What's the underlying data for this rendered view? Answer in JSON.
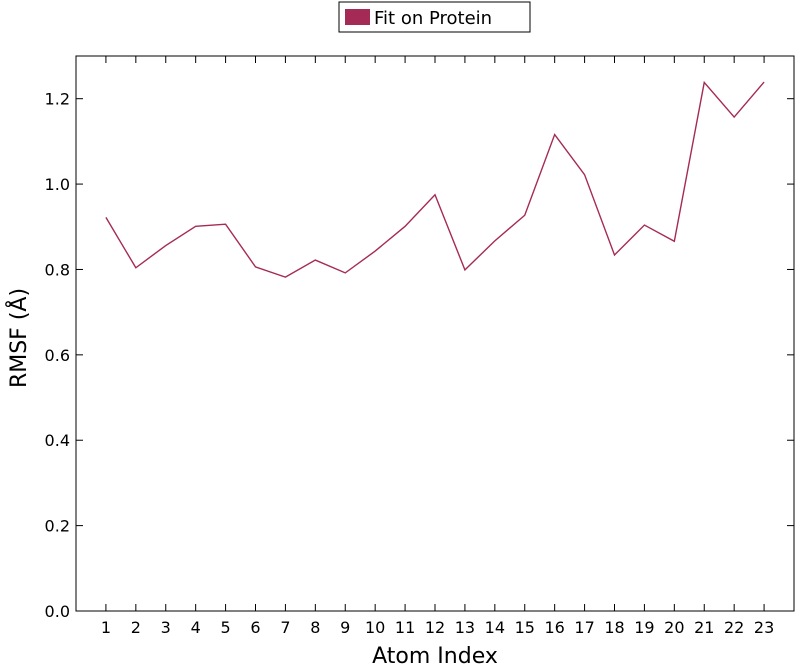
{
  "chart_data": {
    "type": "line",
    "title": "",
    "xlabel": "Atom Index",
    "ylabel": "RMSF (Å)",
    "x": [
      1,
      2,
      3,
      4,
      5,
      6,
      7,
      8,
      9,
      10,
      11,
      12,
      13,
      14,
      15,
      16,
      17,
      18,
      19,
      20,
      21,
      22,
      23
    ],
    "xlim": [
      0,
      24
    ],
    "ylim": [
      0.0,
      1.3
    ],
    "yticks": [
      0.0,
      0.2,
      0.4,
      0.6,
      0.8,
      1.0,
      1.2
    ],
    "ytick_labels": [
      "0.0",
      "0.2",
      "0.4",
      "0.6",
      "0.8",
      "1.0",
      "1.2"
    ],
    "xtick_labels": [
      "1",
      "2",
      "3",
      "4",
      "5",
      "6",
      "7",
      "8",
      "9",
      "10",
      "11",
      "12",
      "13",
      "14",
      "15",
      "16",
      "17",
      "18",
      "19",
      "20",
      "21",
      "22",
      "23"
    ],
    "grid": false,
    "legend_position": "top-center-outside",
    "series": [
      {
        "name": "Fit on Protein",
        "color": "#a52a55",
        "values": [
          0.922,
          0.804,
          0.856,
          0.901,
          0.906,
          0.806,
          0.782,
          0.822,
          0.792,
          0.843,
          0.901,
          0.975,
          0.799,
          0.867,
          0.927,
          1.116,
          1.022,
          0.834,
          0.904,
          0.866,
          1.238,
          1.157,
          1.239
        ]
      }
    ]
  }
}
